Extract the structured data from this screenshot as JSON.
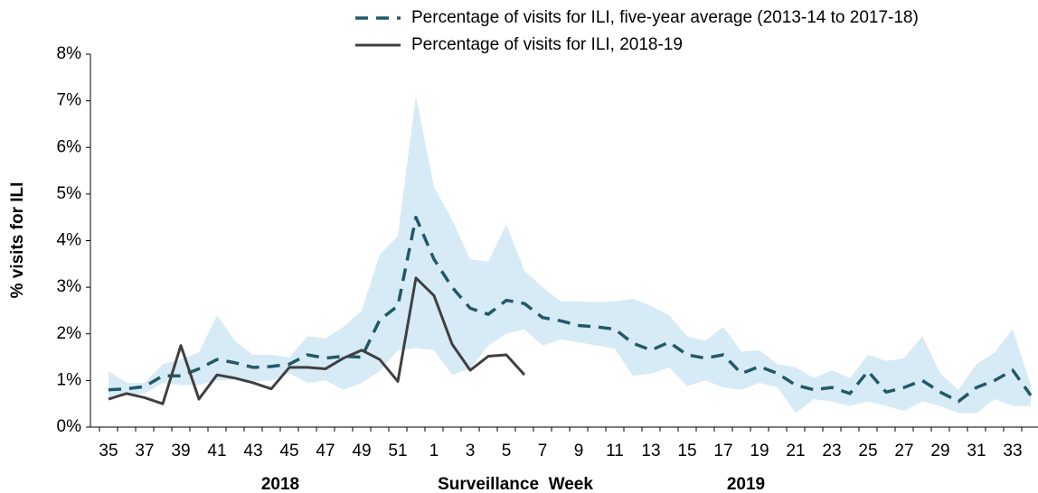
{
  "chart_data": {
    "type": "line",
    "y_label": "% visits for ILI",
    "x_label": "Surveillance  Week",
    "year_labels": [
      "2018",
      "2019"
    ],
    "categories": [
      "35",
      null,
      "37",
      null,
      "39",
      null,
      "41",
      null,
      "43",
      null,
      "45",
      null,
      "47",
      null,
      "49",
      null,
      "51",
      null,
      "1",
      null,
      "3",
      null,
      "5",
      null,
      "7",
      null,
      "9",
      null,
      "11",
      null,
      "13",
      null,
      "15",
      null,
      "17",
      null,
      "19",
      null,
      "21",
      null,
      "23",
      null,
      "25",
      null,
      "27",
      null,
      "29",
      null,
      "31",
      null,
      "33",
      null
    ],
    "ylim": [
      0,
      8
    ],
    "yticks": [
      {
        "value": 0,
        "label": "0%"
      },
      {
        "value": 1,
        "label": "1%"
      },
      {
        "value": 2,
        "label": "2%"
      },
      {
        "value": 3,
        "label": "3%"
      },
      {
        "value": 4,
        "label": "4%"
      },
      {
        "value": 5,
        "label": "5%"
      },
      {
        "value": 6,
        "label": "6%"
      },
      {
        "value": 7,
        "label": "7%"
      },
      {
        "value": 8,
        "label": "8%"
      }
    ],
    "band": {
      "color": "#d6ebf5",
      "upper": [
        1.2,
        0.95,
        0.95,
        1.35,
        1.45,
        1.6,
        2.4,
        1.85,
        1.55,
        1.55,
        1.5,
        1.95,
        1.9,
        2.15,
        2.5,
        3.7,
        4.1,
        7.1,
        5.15,
        4.45,
        3.6,
        3.55,
        4.35,
        3.35,
        3.0,
        2.7,
        2.7,
        2.68,
        2.7,
        2.75,
        2.6,
        2.4,
        1.95,
        1.85,
        2.15,
        1.62,
        1.65,
        1.35,
        1.28,
        1.05,
        1.22,
        1.05,
        1.55,
        1.42,
        1.48,
        1.95,
        1.15,
        0.8,
        1.35,
        1.6,
        2.1,
        0.9
      ],
      "lower": [
        0.6,
        0.68,
        0.72,
        0.95,
        0.9,
        0.9,
        1.0,
        1.02,
        0.98,
        1.0,
        1.15,
        0.95,
        1.0,
        0.8,
        0.95,
        1.2,
        1.65,
        1.7,
        1.65,
        1.12,
        1.25,
        1.75,
        2.0,
        2.1,
        1.75,
        1.88,
        1.82,
        1.75,
        1.68,
        1.1,
        1.15,
        1.28,
        0.88,
        1.0,
        0.85,
        0.8,
        0.95,
        0.85,
        0.3,
        0.6,
        0.55,
        0.45,
        0.55,
        0.45,
        0.35,
        0.55,
        0.45,
        0.3,
        0.3,
        0.6,
        0.45,
        0.45
      ]
    },
    "series": [
      {
        "name": "Percentage of visits for ILI, five-year average (2013-14 to 2017-18)",
        "color": "#215968",
        "dashed": true,
        "values": [
          0.8,
          0.82,
          0.87,
          1.1,
          1.1,
          1.25,
          1.45,
          1.38,
          1.28,
          1.3,
          1.35,
          1.55,
          1.48,
          1.52,
          1.5,
          2.3,
          2.6,
          4.5,
          3.6,
          3.0,
          2.55,
          2.42,
          2.72,
          2.65,
          2.35,
          2.28,
          2.18,
          2.15,
          2.1,
          1.8,
          1.65,
          1.82,
          1.55,
          1.48,
          1.55,
          1.15,
          1.3,
          1.15,
          0.9,
          0.8,
          0.85,
          0.72,
          1.2,
          0.75,
          0.85,
          1.0,
          0.75,
          0.55,
          0.85,
          1.0,
          1.22,
          0.68
        ]
      },
      {
        "name": "Percentage of visits for ILI, 2018-19",
        "color": "#404040",
        "dashed": false,
        "values": [
          0.6,
          0.72,
          0.63,
          0.5,
          1.75,
          0.6,
          1.12,
          1.05,
          0.95,
          0.82,
          1.28,
          1.28,
          1.25,
          1.48,
          1.65,
          1.45,
          0.98,
          3.2,
          2.82,
          1.78,
          1.22,
          1.52,
          1.55,
          1.12,
          null,
          null,
          null,
          null,
          null,
          null,
          null,
          null,
          null,
          null,
          null,
          null,
          null,
          null,
          null,
          null,
          null,
          null,
          null,
          null,
          null,
          null,
          null,
          null,
          null,
          null,
          null,
          null
        ]
      }
    ]
  }
}
